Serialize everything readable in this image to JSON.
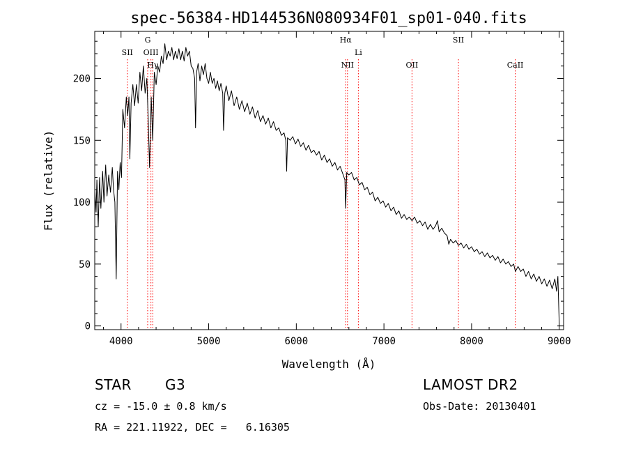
{
  "chart_data": {
    "type": "line",
    "title": "spec-56384-HD144536N080934F01_sp01-040.fits",
    "xlabel": "Wavelength (Å)",
    "ylabel": "Flux (relative)",
    "xlim": [
      3700,
      9050
    ],
    "ylim": [
      -3,
      238
    ],
    "x_ticks": [
      4000,
      5000,
      6000,
      7000,
      8000,
      9000
    ],
    "y_ticks": [
      0,
      50,
      100,
      150,
      200
    ],
    "grid": false,
    "series": [
      {
        "color": "#000000",
        "points": [
          [
            3700,
            110
          ],
          [
            3715,
            92
          ],
          [
            3725,
            118
          ],
          [
            3740,
            80
          ],
          [
            3755,
            120
          ],
          [
            3770,
            95
          ],
          [
            3790,
            125
          ],
          [
            3805,
            100
          ],
          [
            3825,
            130
          ],
          [
            3840,
            105
          ],
          [
            3860,
            122
          ],
          [
            3880,
            108
          ],
          [
            3900,
            128
          ],
          [
            3915,
            110
          ],
          [
            3930,
            100
          ],
          [
            3945,
            38
          ],
          [
            3960,
            125
          ],
          [
            3975,
            110
          ],
          [
            3990,
            132
          ],
          [
            4005,
            120
          ],
          [
            4020,
            175
          ],
          [
            4040,
            160
          ],
          [
            4060,
            185
          ],
          [
            4075,
            170
          ],
          [
            4090,
            185
          ],
          [
            4101,
            135
          ],
          [
            4115,
            180
          ],
          [
            4135,
            195
          ],
          [
            4155,
            178
          ],
          [
            4175,
            195
          ],
          [
            4195,
            180
          ],
          [
            4215,
            205
          ],
          [
            4235,
            190
          ],
          [
            4255,
            210
          ],
          [
            4275,
            188
          ],
          [
            4295,
            200
          ],
          [
            4310,
            168
          ],
          [
            4326,
            128
          ],
          [
            4345,
            185
          ],
          [
            4361,
            150
          ],
          [
            4380,
            205
          ],
          [
            4400,
            195
          ],
          [
            4420,
            210
          ],
          [
            4440,
            205
          ],
          [
            4460,
            218
          ],
          [
            4480,
            212
          ],
          [
            4500,
            228
          ],
          [
            4520,
            215
          ],
          [
            4540,
            222
          ],
          [
            4560,
            218
          ],
          [
            4580,
            225
          ],
          [
            4600,
            215
          ],
          [
            4620,
            222
          ],
          [
            4640,
            216
          ],
          [
            4660,
            224
          ],
          [
            4680,
            215
          ],
          [
            4700,
            222
          ],
          [
            4720,
            214
          ],
          [
            4740,
            225
          ],
          [
            4760,
            218
          ],
          [
            4780,
            222
          ],
          [
            4800,
            210
          ],
          [
            4820,
            208
          ],
          [
            4840,
            200
          ],
          [
            4850,
            160
          ],
          [
            4862,
            205
          ],
          [
            4880,
            212
          ],
          [
            4900,
            198
          ],
          [
            4920,
            210
          ],
          [
            4940,
            203
          ],
          [
            4960,
            212
          ],
          [
            4980,
            200
          ],
          [
            5000,
            196
          ],
          [
            5020,
            205
          ],
          [
            5040,
            196
          ],
          [
            5060,
            200
          ],
          [
            5080,
            192
          ],
          [
            5100,
            198
          ],
          [
            5120,
            190
          ],
          [
            5140,
            196
          ],
          [
            5160,
            188
          ],
          [
            5170,
            158
          ],
          [
            5184,
            188
          ],
          [
            5200,
            194
          ],
          [
            5230,
            182
          ],
          [
            5260,
            190
          ],
          [
            5290,
            178
          ],
          [
            5320,
            185
          ],
          [
            5350,
            175
          ],
          [
            5380,
            182
          ],
          [
            5410,
            173
          ],
          [
            5440,
            180
          ],
          [
            5470,
            171
          ],
          [
            5500,
            177
          ],
          [
            5530,
            168
          ],
          [
            5560,
            174
          ],
          [
            5590,
            165
          ],
          [
            5620,
            170
          ],
          [
            5650,
            163
          ],
          [
            5680,
            168
          ],
          [
            5710,
            160
          ],
          [
            5740,
            165
          ],
          [
            5770,
            158
          ],
          [
            5800,
            160
          ],
          [
            5830,
            154
          ],
          [
            5860,
            156
          ],
          [
            5880,
            150
          ],
          [
            5890,
            125
          ],
          [
            5900,
            152
          ],
          [
            5930,
            150
          ],
          [
            5960,
            153
          ],
          [
            5990,
            147
          ],
          [
            6020,
            151
          ],
          [
            6050,
            145
          ],
          [
            6080,
            148
          ],
          [
            6110,
            142
          ],
          [
            6140,
            146
          ],
          [
            6170,
            140
          ],
          [
            6200,
            142
          ],
          [
            6230,
            138
          ],
          [
            6260,
            141
          ],
          [
            6290,
            134
          ],
          [
            6320,
            138
          ],
          [
            6350,
            132
          ],
          [
            6380,
            135
          ],
          [
            6410,
            129
          ],
          [
            6440,
            132
          ],
          [
            6470,
            126
          ],
          [
            6500,
            129
          ],
          [
            6530,
            123
          ],
          [
            6555,
            118
          ],
          [
            6563,
            95
          ],
          [
            6575,
            124
          ],
          [
            6600,
            122
          ],
          [
            6630,
            124
          ],
          [
            6660,
            118
          ],
          [
            6690,
            120
          ],
          [
            6720,
            114
          ],
          [
            6750,
            116
          ],
          [
            6780,
            110
          ],
          [
            6810,
            112
          ],
          [
            6840,
            106
          ],
          [
            6870,
            108
          ],
          [
            6900,
            101
          ],
          [
            6930,
            104
          ],
          [
            6960,
            99
          ],
          [
            6990,
            101
          ],
          [
            7020,
            96
          ],
          [
            7050,
            99
          ],
          [
            7080,
            93
          ],
          [
            7110,
            96
          ],
          [
            7140,
            90
          ],
          [
            7170,
            93
          ],
          [
            7200,
            87
          ],
          [
            7230,
            90
          ],
          [
            7260,
            86
          ],
          [
            7290,
            88
          ],
          [
            7320,
            85
          ],
          [
            7350,
            88
          ],
          [
            7380,
            83
          ],
          [
            7410,
            85
          ],
          [
            7440,
            81
          ],
          [
            7470,
            84
          ],
          [
            7500,
            78
          ],
          [
            7530,
            82
          ],
          [
            7560,
            78
          ],
          [
            7590,
            81
          ],
          [
            7610,
            85
          ],
          [
            7630,
            76
          ],
          [
            7660,
            79
          ],
          [
            7690,
            75
          ],
          [
            7720,
            73
          ],
          [
            7740,
            66
          ],
          [
            7760,
            70
          ],
          [
            7790,
            67
          ],
          [
            7820,
            69
          ],
          [
            7850,
            65
          ],
          [
            7880,
            67
          ],
          [
            7910,
            63
          ],
          [
            7940,
            66
          ],
          [
            7970,
            62
          ],
          [
            8000,
            64
          ],
          [
            8030,
            60
          ],
          [
            8060,
            62
          ],
          [
            8090,
            58
          ],
          [
            8120,
            60
          ],
          [
            8150,
            56
          ],
          [
            8180,
            59
          ],
          [
            8210,
            55
          ],
          [
            8240,
            57
          ],
          [
            8270,
            53
          ],
          [
            8300,
            56
          ],
          [
            8330,
            51
          ],
          [
            8360,
            54
          ],
          [
            8390,
            50
          ],
          [
            8420,
            52
          ],
          [
            8450,
            48
          ],
          [
            8480,
            50
          ],
          [
            8500,
            44
          ],
          [
            8530,
            48
          ],
          [
            8560,
            44
          ],
          [
            8590,
            46
          ],
          [
            8620,
            40
          ],
          [
            8650,
            44
          ],
          [
            8680,
            38
          ],
          [
            8710,
            42
          ],
          [
            8740,
            36
          ],
          [
            8770,
            40
          ],
          [
            8800,
            34
          ],
          [
            8830,
            38
          ],
          [
            8860,
            32
          ],
          [
            8890,
            37
          ],
          [
            8920,
            30
          ],
          [
            8950,
            38
          ],
          [
            8970,
            28
          ],
          [
            8985,
            40
          ],
          [
            9000,
            2
          ]
        ]
      }
    ],
    "lines": [
      {
        "label": "SII",
        "x": 4072,
        "label_level": 1
      },
      {
        "label": "G",
        "x": 4304,
        "label_level": 0
      },
      {
        "label": "OIII",
        "x": 4341,
        "label_level": 1
      },
      {
        "label": "Hγ",
        "x": 4362,
        "label_level": 2
      },
      {
        "label": "Hα",
        "x": 6563,
        "label_level": 0
      },
      {
        "label": "NII",
        "x": 6584,
        "label_level": 2
      },
      {
        "label": "Li",
        "x": 6708,
        "label_level": 1
      },
      {
        "label": "OII",
        "x": 7320,
        "label_level": 2
      },
      {
        "label": "SII",
        "x": 7850,
        "label_level": 0
      },
      {
        "label": "CaII",
        "x": 8498,
        "label_level": 2
      }
    ],
    "line_color": "#ff0000"
  },
  "info": {
    "object_type": "STAR",
    "subclass": "G3",
    "survey": "LAMOST DR2",
    "redshift_line": "cz = -15.0 ± 0.8 km/s",
    "obs_date": "Obs-Date: 20130401",
    "coords": "RA = 221.11922, DEC =   6.16305"
  }
}
